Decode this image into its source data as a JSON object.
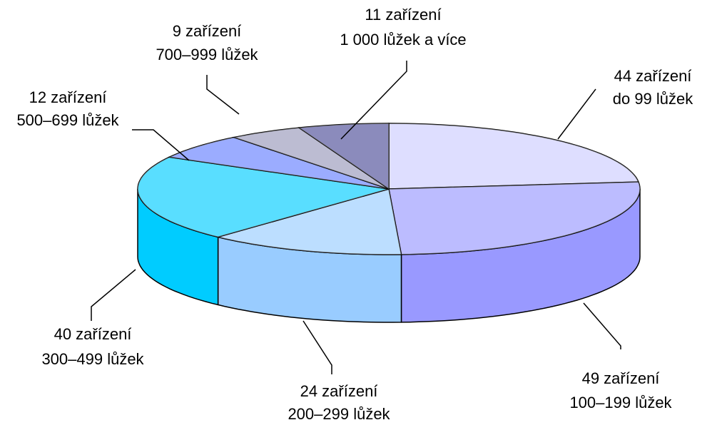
{
  "chart_data": {
    "type": "pie",
    "categories": [
      "do 99 lůžek",
      "100–199 lůžek",
      "200–299 lůžek",
      "300–499 lůžek",
      "500–699 lůžek",
      "700–999 lůžek",
      "1 000 lůžek a více"
    ],
    "values": [
      44,
      49,
      24,
      40,
      12,
      9,
      11
    ],
    "value_labels": [
      "44 zařízení",
      "49 zařízení",
      "24 zařízení",
      "40 zařízení",
      "12 zařízení",
      "9 zařízení",
      "11 zařízení"
    ],
    "colors": [
      "#ccccff",
      "#9999ff",
      "#99ccff",
      "#00ccff",
      "#6680ff",
      "#9999bb",
      "#4d4d99"
    ]
  }
}
